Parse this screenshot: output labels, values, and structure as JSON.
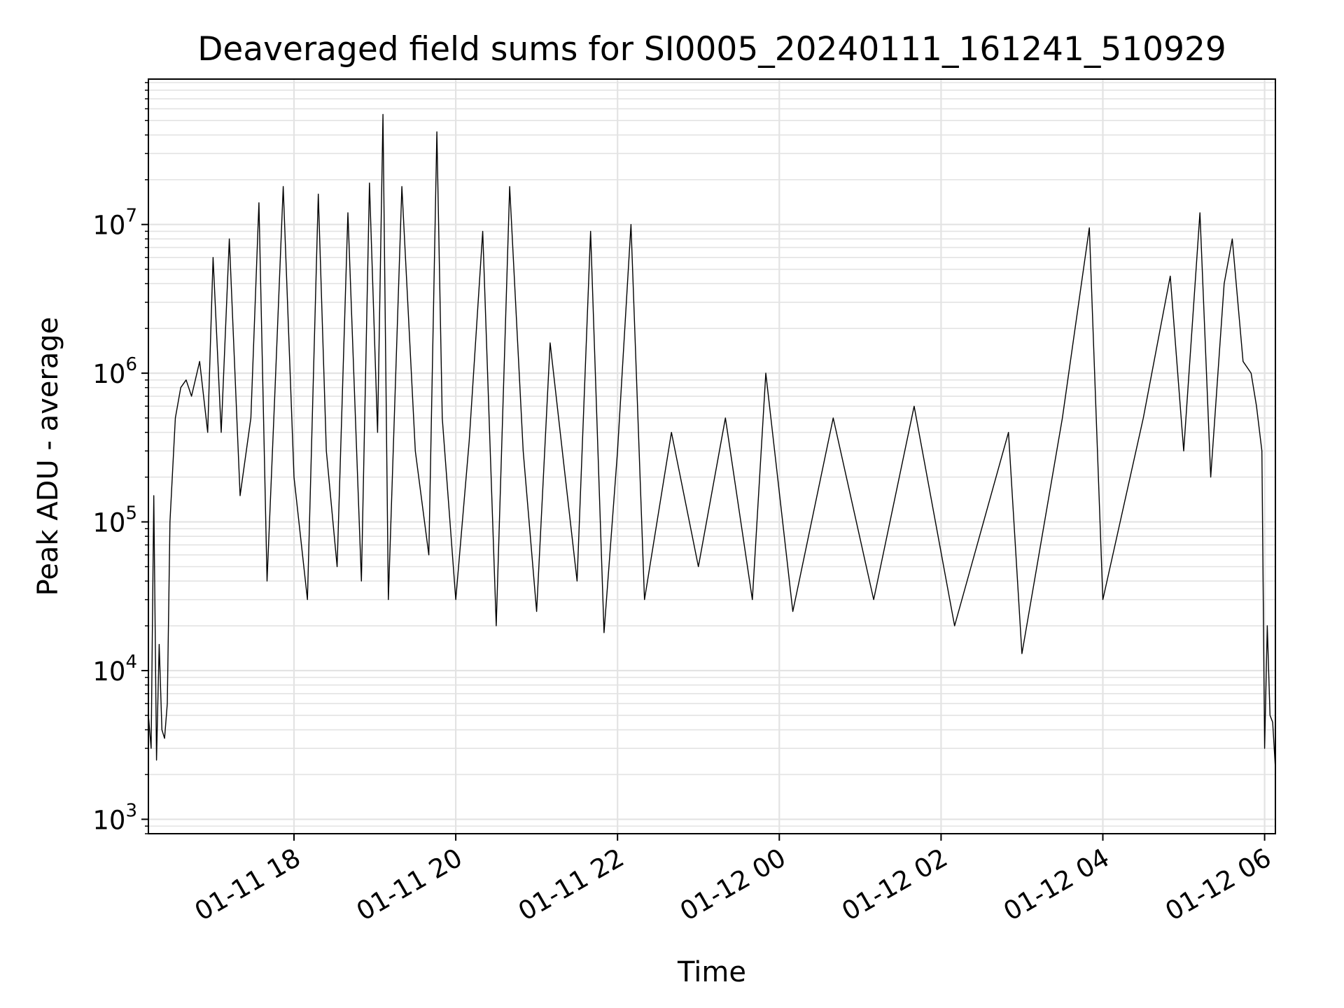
{
  "chart_data": {
    "type": "line",
    "title": "Deaveraged field sums for SI0005_20240111_161241_510929",
    "xlabel": "Time",
    "ylabel": "Peak ADU - average",
    "y_scale": "log",
    "ylim": [
      800,
      95000000
    ],
    "xlim": [
      "2024-01-11 16:12",
      "2024-01-12 06:08"
    ],
    "grid": true,
    "line_color": "#000000",
    "grid_color": "#e3e3e3",
    "x_ticks": [
      {
        "label": "01-11 18",
        "time": "2024-01-11 18:00"
      },
      {
        "label": "01-11 20",
        "time": "2024-01-11 20:00"
      },
      {
        "label": "01-11 22",
        "time": "2024-01-11 22:00"
      },
      {
        "label": "01-12 00",
        "time": "2024-01-12 00:00"
      },
      {
        "label": "01-12 02",
        "time": "2024-01-12 02:00"
      },
      {
        "label": "01-12 04",
        "time": "2024-01-12 04:00"
      },
      {
        "label": "01-12 06",
        "time": "2024-01-12 06:00"
      }
    ],
    "y_ticks": [
      {
        "base": "10",
        "exp": "3",
        "value": 1000
      },
      {
        "base": "10",
        "exp": "4",
        "value": 10000
      },
      {
        "base": "10",
        "exp": "5",
        "value": 100000
      },
      {
        "base": "10",
        "exp": "6",
        "value": 1000000
      },
      {
        "base": "10",
        "exp": "7",
        "value": 10000000
      }
    ],
    "series": [
      {
        "points": [
          [
            "2024-01-11 16:12",
            5000
          ],
          [
            "2024-01-11 16:14",
            3000
          ],
          [
            "2024-01-11 16:16",
            150000
          ],
          [
            "2024-01-11 16:18",
            2500
          ],
          [
            "2024-01-11 16:20",
            15000
          ],
          [
            "2024-01-11 16:22",
            4000
          ],
          [
            "2024-01-11 16:24",
            3500
          ],
          [
            "2024-01-11 16:26",
            6000
          ],
          [
            "2024-01-11 16:28",
            100000
          ],
          [
            "2024-01-11 16:32",
            500000
          ],
          [
            "2024-01-11 16:36",
            800000
          ],
          [
            "2024-01-11 16:40",
            900000
          ],
          [
            "2024-01-11 16:44",
            700000
          ],
          [
            "2024-01-11 16:50",
            1200000
          ],
          [
            "2024-01-11 16:56",
            400000
          ],
          [
            "2024-01-11 17:00",
            6000000
          ],
          [
            "2024-01-11 17:06",
            400000
          ],
          [
            "2024-01-11 17:12",
            8000000
          ],
          [
            "2024-01-11 17:20",
            150000
          ],
          [
            "2024-01-11 17:28",
            500000
          ],
          [
            "2024-01-11 17:34",
            14000000
          ],
          [
            "2024-01-11 17:40",
            40000
          ],
          [
            "2024-01-11 17:46",
            800000
          ],
          [
            "2024-01-11 17:52",
            18000000
          ],
          [
            "2024-01-11 18:00",
            200000
          ],
          [
            "2024-01-11 18:10",
            30000
          ],
          [
            "2024-01-11 18:18",
            16000000
          ],
          [
            "2024-01-11 18:24",
            300000
          ],
          [
            "2024-01-11 18:32",
            50000
          ],
          [
            "2024-01-11 18:40",
            12000000
          ],
          [
            "2024-01-11 18:50",
            40000
          ],
          [
            "2024-01-11 18:56",
            19000000
          ],
          [
            "2024-01-11 19:02",
            400000
          ],
          [
            "2024-01-11 19:06",
            55000000
          ],
          [
            "2024-01-11 19:10",
            30000
          ],
          [
            "2024-01-11 19:20",
            18000000
          ],
          [
            "2024-01-11 19:30",
            300000
          ],
          [
            "2024-01-11 19:40",
            60000
          ],
          [
            "2024-01-11 19:46",
            42000000
          ],
          [
            "2024-01-11 19:50",
            500000
          ],
          [
            "2024-01-11 20:00",
            30000
          ],
          [
            "2024-01-11 20:10",
            350000
          ],
          [
            "2024-01-11 20:20",
            9000000
          ],
          [
            "2024-01-11 20:30",
            20000
          ],
          [
            "2024-01-11 20:40",
            18000000
          ],
          [
            "2024-01-11 20:50",
            300000
          ],
          [
            "2024-01-11 21:00",
            25000
          ],
          [
            "2024-01-11 21:10",
            1600000
          ],
          [
            "2024-01-11 21:20",
            250000
          ],
          [
            "2024-01-11 21:30",
            40000
          ],
          [
            "2024-01-11 21:40",
            9000000
          ],
          [
            "2024-01-11 21:50",
            18000
          ],
          [
            "2024-01-11 22:00",
            300000
          ],
          [
            "2024-01-11 22:10",
            10000000
          ],
          [
            "2024-01-11 22:20",
            30000
          ],
          [
            "2024-01-11 22:40",
            400000
          ],
          [
            "2024-01-11 23:00",
            50000
          ],
          [
            "2024-01-11 23:20",
            500000
          ],
          [
            "2024-01-11 23:40",
            30000
          ],
          [
            "2024-01-11 23:50",
            1000000
          ],
          [
            "2024-01-12 00:10",
            25000
          ],
          [
            "2024-01-12 00:40",
            500000
          ],
          [
            "2024-01-12 01:10",
            30000
          ],
          [
            "2024-01-12 01:40",
            600000
          ],
          [
            "2024-01-12 02:10",
            20000
          ],
          [
            "2024-01-12 02:50",
            400000
          ],
          [
            "2024-01-12 03:00",
            13000
          ],
          [
            "2024-01-12 03:30",
            500000
          ],
          [
            "2024-01-12 03:50",
            9500000
          ],
          [
            "2024-01-12 04:00",
            30000
          ],
          [
            "2024-01-12 04:30",
            500000
          ],
          [
            "2024-01-12 04:50",
            4500000
          ],
          [
            "2024-01-12 05:00",
            300000
          ],
          [
            "2024-01-12 05:12",
            12000000
          ],
          [
            "2024-01-12 05:20",
            200000
          ],
          [
            "2024-01-12 05:30",
            4000000
          ],
          [
            "2024-01-12 05:36",
            8000000
          ],
          [
            "2024-01-12 05:44",
            1200000
          ],
          [
            "2024-01-12 05:50",
            1000000
          ],
          [
            "2024-01-12 05:54",
            600000
          ],
          [
            "2024-01-12 05:58",
            300000
          ],
          [
            "2024-01-12 06:00",
            3000
          ],
          [
            "2024-01-12 06:02",
            20000
          ],
          [
            "2024-01-12 06:04",
            5000
          ],
          [
            "2024-01-12 06:06",
            4500
          ],
          [
            "2024-01-12 06:08",
            2200
          ]
        ]
      }
    ]
  }
}
